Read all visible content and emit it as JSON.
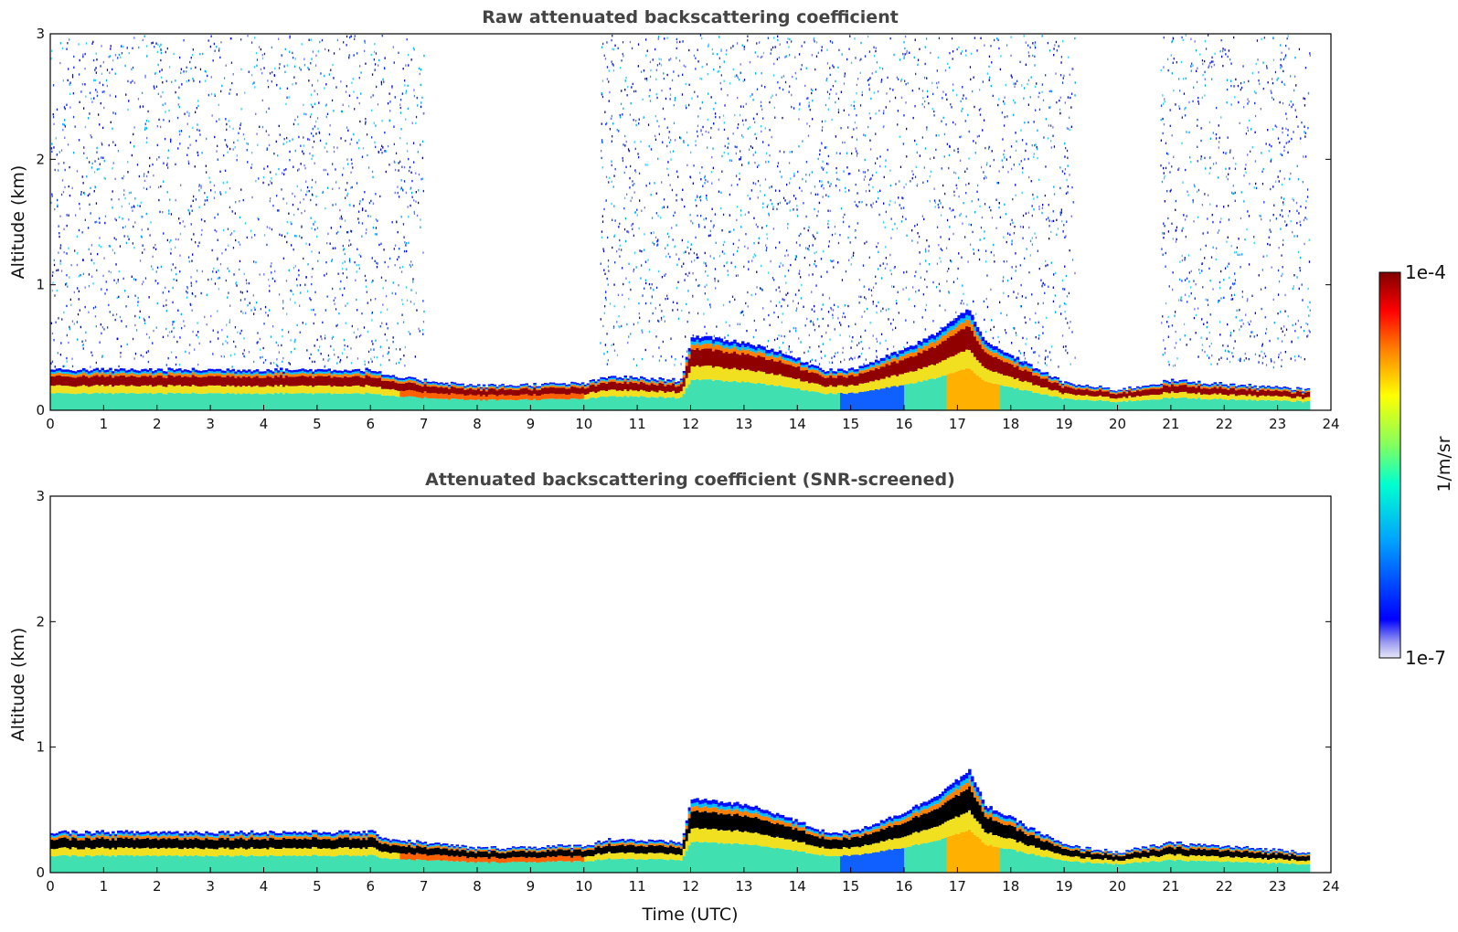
{
  "chart_data": [
    {
      "type": "heatmap",
      "title": "Raw attenuated backscattering coefficient",
      "xlabel": "",
      "ylabel": "Altitude (km)",
      "xlim": [
        0,
        24
      ],
      "ylim": [
        0,
        3
      ],
      "x_ticks": [
        "0",
        "1",
        "2",
        "3",
        "4",
        "5",
        "6",
        "7",
        "8",
        "9",
        "10",
        "11",
        "12",
        "13",
        "14",
        "15",
        "16",
        "17",
        "18",
        "19",
        "20",
        "21",
        "22",
        "23",
        "24"
      ],
      "y_ticks": [
        "0",
        "1",
        "2",
        "3"
      ],
      "colormap": "jet",
      "boundary_layer_top_km": {
        "time_utc": [
          0,
          2,
          4,
          6,
          6.3,
          8,
          10,
          10.5,
          11.8,
          12,
          13,
          13.5,
          14.5,
          15,
          16,
          16.5,
          17.2,
          17.5,
          18,
          19,
          20,
          21,
          23.6
        ],
        "altitude_km": [
          0.3,
          0.3,
          0.3,
          0.3,
          0.25,
          0.18,
          0.2,
          0.25,
          0.22,
          0.55,
          0.5,
          0.45,
          0.3,
          0.3,
          0.45,
          0.55,
          0.75,
          0.5,
          0.4,
          0.2,
          0.15,
          0.22,
          0.15
        ]
      },
      "noise_regions_utc": [
        [
          0,
          7
        ],
        [
          10.3,
          19.2
        ],
        [
          20.8,
          23.6
        ]
      ]
    },
    {
      "type": "heatmap",
      "title": "Attenuated backscattering coefficient (SNR-screened)",
      "xlabel": "Time (UTC)",
      "ylabel": "Altitude (km)",
      "xlim": [
        0,
        24
      ],
      "ylim": [
        0,
        3
      ],
      "x_ticks": [
        "0",
        "1",
        "2",
        "3",
        "4",
        "5",
        "6",
        "7",
        "8",
        "9",
        "10",
        "11",
        "12",
        "13",
        "14",
        "15",
        "16",
        "17",
        "18",
        "19",
        "20",
        "21",
        "22",
        "23",
        "24"
      ],
      "y_ticks": [
        "0",
        "1",
        "2",
        "3"
      ],
      "colormap": "jet",
      "boundary_layer_top_km": {
        "time_utc": [
          0,
          2,
          4,
          6,
          6.3,
          8,
          10,
          10.5,
          11.8,
          12,
          13,
          13.5,
          14.5,
          15,
          16,
          16.5,
          17.2,
          17.5,
          18,
          19,
          20,
          21,
          23.6
        ],
        "altitude_km": [
          0.3,
          0.3,
          0.3,
          0.3,
          0.25,
          0.18,
          0.2,
          0.25,
          0.22,
          0.55,
          0.5,
          0.45,
          0.3,
          0.3,
          0.45,
          0.55,
          0.75,
          0.5,
          0.4,
          0.2,
          0.15,
          0.22,
          0.15
        ]
      },
      "saturated_color": "#000000"
    }
  ],
  "colorbar": {
    "max_label": "1e-4",
    "min_label": "1e-7",
    "unit_label": "1/m/sr",
    "scale": "log"
  },
  "colors": {
    "axes": "#000000",
    "title": "#444444",
    "background": "#ffffff"
  }
}
